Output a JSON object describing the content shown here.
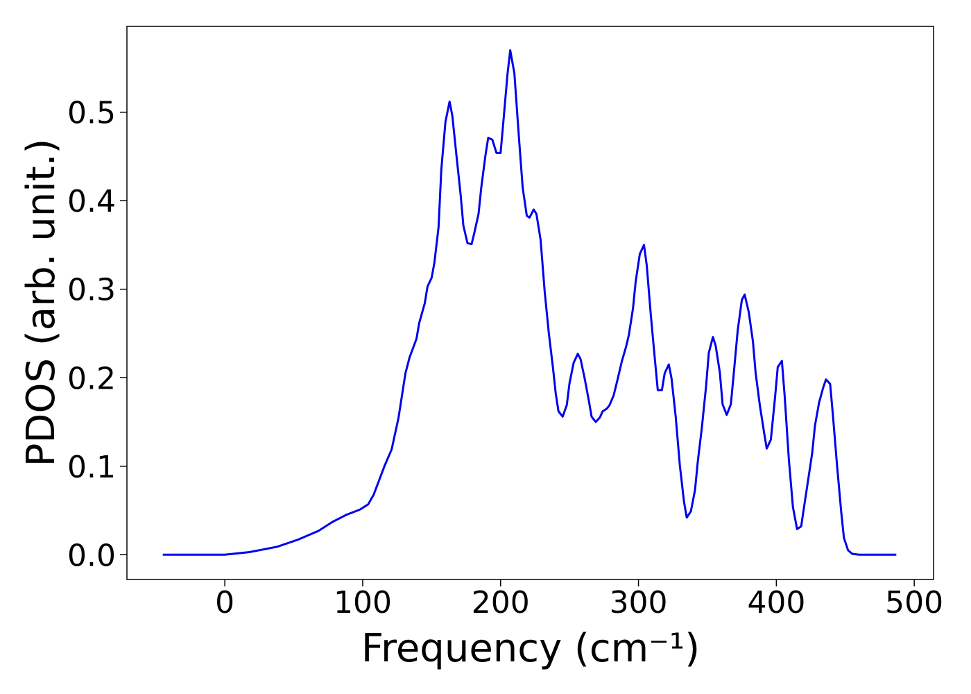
{
  "chart_data": {
    "type": "line",
    "xlabel": "Frequency (cm⁻¹)",
    "ylabel": "PDOS (arb. unit.)",
    "color": "#0000ee",
    "xlim": [
      -71,
      514
    ],
    "ylim": [
      -0.028,
      0.597
    ],
    "xticks": [
      0,
      100,
      200,
      300,
      400,
      500
    ],
    "yticks": [
      {
        "value": 0,
        "label": "0.0"
      },
      0.1,
      0.2,
      0.3,
      0.4,
      0.5
    ],
    "x": [
      -45,
      0,
      18,
      38,
      53,
      68,
      78,
      88,
      98,
      104,
      108,
      116,
      121,
      126,
      131,
      134,
      139,
      141,
      145,
      147,
      150,
      152,
      155,
      157,
      160,
      163,
      165,
      168,
      171,
      173,
      176,
      179,
      181,
      184,
      186,
      189,
      191,
      194,
      197,
      200,
      202,
      205,
      207,
      210,
      213,
      216,
      219,
      221,
      224,
      226,
      229,
      232,
      235,
      238,
      240,
      242,
      245,
      248,
      250,
      253,
      256,
      258,
      261,
      264,
      266,
      269,
      272,
      274,
      277,
      279,
      282,
      285,
      288,
      291,
      293,
      296,
      298,
      301,
      304,
      306,
      309,
      312,
      314,
      317,
      319,
      322,
      324,
      327,
      330,
      333,
      335,
      338,
      341,
      343,
      346,
      349,
      351,
      354,
      356,
      359,
      361,
      364,
      367,
      369,
      372,
      375,
      377,
      380,
      383,
      385,
      388,
      391,
      393,
      396,
      399,
      401,
      404,
      406,
      409,
      412,
      415,
      418,
      420,
      423,
      426,
      428,
      431,
      434,
      436,
      439,
      441,
      444,
      447,
      449,
      452,
      455,
      460,
      487
    ],
    "values": [
      0,
      0,
      0.003,
      0.009,
      0.017,
      0.027,
      0.037,
      0.045,
      0.051,
      0.057,
      0.068,
      0.101,
      0.119,
      0.155,
      0.205,
      0.223,
      0.244,
      0.262,
      0.284,
      0.303,
      0.313,
      0.33,
      0.37,
      0.435,
      0.489,
      0.512,
      0.496,
      0.451,
      0.407,
      0.372,
      0.352,
      0.351,
      0.364,
      0.385,
      0.415,
      0.451,
      0.471,
      0.469,
      0.454,
      0.454,
      0.489,
      0.543,
      0.57,
      0.544,
      0.478,
      0.415,
      0.383,
      0.381,
      0.39,
      0.385,
      0.356,
      0.297,
      0.25,
      0.211,
      0.182,
      0.162,
      0.156,
      0.169,
      0.194,
      0.217,
      0.227,
      0.221,
      0.199,
      0.174,
      0.156,
      0.15,
      0.155,
      0.162,
      0.165,
      0.169,
      0.18,
      0.199,
      0.219,
      0.235,
      0.248,
      0.278,
      0.309,
      0.34,
      0.35,
      0.327,
      0.27,
      0.219,
      0.186,
      0.186,
      0.205,
      0.215,
      0.199,
      0.156,
      0.101,
      0.06,
      0.042,
      0.049,
      0.073,
      0.105,
      0.144,
      0.19,
      0.228,
      0.246,
      0.236,
      0.206,
      0.17,
      0.158,
      0.17,
      0.203,
      0.254,
      0.288,
      0.294,
      0.274,
      0.241,
      0.205,
      0.169,
      0.139,
      0.12,
      0.13,
      0.177,
      0.212,
      0.219,
      0.18,
      0.109,
      0.054,
      0.029,
      0.032,
      0.053,
      0.084,
      0.115,
      0.146,
      0.172,
      0.189,
      0.198,
      0.193,
      0.158,
      0.101,
      0.049,
      0.019,
      0.005,
      0.001,
      0,
      0
    ]
  }
}
